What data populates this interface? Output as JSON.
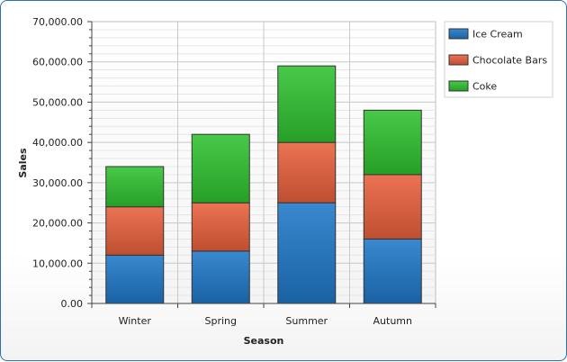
{
  "chart_data": {
    "type": "bar",
    "stacked": true,
    "xlabel": "Season",
    "ylabel": "Sales",
    "ylim": [
      0,
      70000
    ],
    "y_ticks": [
      "0.00",
      "10,000.00",
      "20,000.00",
      "30,000.00",
      "40,000.00",
      "50,000.00",
      "60,000.00",
      "70,000.00"
    ],
    "y_tick_values": [
      0,
      10000,
      20000,
      30000,
      40000,
      50000,
      60000,
      70000
    ],
    "categories": [
      "Winter",
      "Spring",
      "Summer",
      "Autumn"
    ],
    "series": [
      {
        "name": "Ice Cream",
        "values": [
          12000,
          13000,
          25000,
          16000
        ],
        "color": "#1f78c8"
      },
      {
        "name": "Chocolate Bars",
        "values": [
          12000,
          12000,
          15000,
          16000
        ],
        "color": "#e8603c"
      },
      {
        "name": "Coke",
        "values": [
          10000,
          17000,
          19000,
          16000
        ],
        "color": "#2fc22f"
      }
    ],
    "grid": true,
    "legend": "top-right"
  }
}
